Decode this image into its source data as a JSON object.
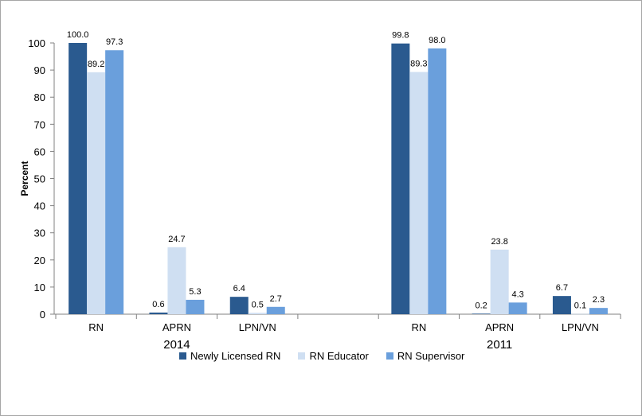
{
  "chart_data": {
    "type": "bar",
    "title": "",
    "ylabel": "Percent",
    "ylim": [
      0,
      100
    ],
    "yticks": [
      0,
      10,
      20,
      30,
      40,
      50,
      60,
      70,
      80,
      90,
      100
    ],
    "groups": [
      {
        "name": "2014",
        "categories": [
          "RN",
          "APRN",
          "LPN/VN"
        ],
        "series": [
          {
            "name": "Newly Licensed RN",
            "values": [
              100.0,
              0.6,
              6.4
            ]
          },
          {
            "name": "RN Educator",
            "values": [
              89.2,
              24.7,
              0.5
            ]
          },
          {
            "name": "RN Supervisor",
            "values": [
              97.3,
              5.3,
              2.7
            ]
          }
        ]
      },
      {
        "name": "2011",
        "categories": [
          "RN",
          "APRN",
          "LPN/VN"
        ],
        "series": [
          {
            "name": "Newly Licensed RN",
            "values": [
              99.8,
              0.2,
              6.7
            ]
          },
          {
            "name": "RN Educator",
            "values": [
              89.3,
              23.8,
              0.1
            ]
          },
          {
            "name": "RN Supervisor",
            "values": [
              98.0,
              4.3,
              2.3
            ]
          }
        ]
      }
    ],
    "legend": [
      "Newly Licensed RN",
      "RN Educator",
      "RN Supervisor"
    ],
    "legend_position": "bottom",
    "colors": [
      "#2a5a8f",
      "#cfdff2",
      "#6a9fdc"
    ],
    "grid": false
  }
}
